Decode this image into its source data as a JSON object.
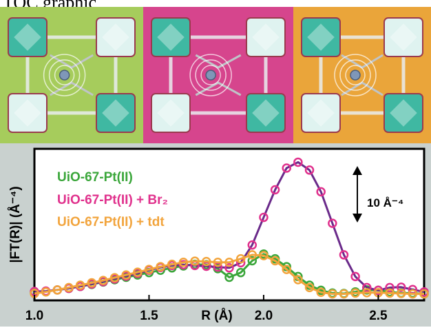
{
  "header": {
    "title": "TOC graphic"
  },
  "panels": [
    {
      "name": "green",
      "bg": "#a6cc5c"
    },
    {
      "name": "magenta",
      "bg": "#d6458d"
    },
    {
      "name": "orange",
      "bg": "#eaa53a"
    }
  ],
  "chart_data": {
    "type": "line",
    "xlabel": "R (Å)",
    "ylabel": "|FT(R)| (Å⁻⁴)",
    "xlim": [
      1.0,
      2.7
    ],
    "xticks": [
      "1.0",
      "1.5",
      "2.0",
      "2.5"
    ],
    "scale_bar": {
      "label": "10 Å⁻⁴",
      "value": 10
    },
    "grid": false,
    "legend_position": "top-left",
    "series": [
      {
        "name": "UiO-67-Pt(II)",
        "color": "#3aa63a",
        "x": [
          1.0,
          1.05,
          1.1,
          1.15,
          1.2,
          1.25,
          1.3,
          1.35,
          1.4,
          1.45,
          1.5,
          1.55,
          1.6,
          1.65,
          1.7,
          1.75,
          1.8,
          1.85,
          1.9,
          1.95,
          2.0,
          2.05,
          2.1,
          2.15,
          2.2,
          2.25,
          2.3,
          2.35,
          2.4,
          2.45,
          2.5,
          2.55,
          2.6,
          2.65,
          2.7
        ],
        "y": [
          0.9,
          1.2,
          1.6,
          2.0,
          2.5,
          3.0,
          3.6,
          4.2,
          4.8,
          5.4,
          6.0,
          6.6,
          7.2,
          7.7,
          8.1,
          8.0,
          7.0,
          4.8,
          6.0,
          9.0,
          10.7,
          9.5,
          7.5,
          5.0,
          2.8,
          1.5,
          0.8,
          0.7,
          1.1,
          1.6,
          1.5,
          1.1,
          0.8,
          0.8,
          0.6
        ]
      },
      {
        "name": "UiO-67-Pt(II) + Br₂",
        "color": "#e0308c",
        "x": [
          1.0,
          1.05,
          1.1,
          1.15,
          1.2,
          1.25,
          1.3,
          1.35,
          1.4,
          1.45,
          1.5,
          1.55,
          1.6,
          1.65,
          1.7,
          1.75,
          1.8,
          1.85,
          1.9,
          1.95,
          2.0,
          2.05,
          2.1,
          2.15,
          2.2,
          2.25,
          2.3,
          2.35,
          2.4,
          2.45,
          2.5,
          2.55,
          2.6,
          2.65,
          2.7
        ],
        "y": [
          1.2,
          1.3,
          1.6,
          2.0,
          2.5,
          3.1,
          3.7,
          4.4,
          5.1,
          5.8,
          6.6,
          7.3,
          7.8,
          8.0,
          7.8,
          7.6,
          7.4,
          7.2,
          8.5,
          13.0,
          20.0,
          27.0,
          32.5,
          34.0,
          32.0,
          26.5,
          18.5,
          10.5,
          5.0,
          2.2,
          1.5,
          2.2,
          2.3,
          1.7,
          1.1
        ]
      },
      {
        "name": "UiO-67-Pt(II) + tdt",
        "color": "#f2a43c",
        "x": [
          1.0,
          1.05,
          1.1,
          1.15,
          1.2,
          1.25,
          1.3,
          1.35,
          1.4,
          1.45,
          1.5,
          1.55,
          1.6,
          1.65,
          1.7,
          1.75,
          1.8,
          1.85,
          1.9,
          1.95,
          2.0,
          2.05,
          2.1,
          2.15,
          2.2,
          2.25,
          2.3,
          2.35,
          2.4,
          2.45,
          2.5,
          2.55,
          2.6,
          2.65,
          2.7
        ],
        "y": [
          0.7,
          1.1,
          1.6,
          2.2,
          2.8,
          3.4,
          4.0,
          4.7,
          5.4,
          6.1,
          6.8,
          7.5,
          8.1,
          8.6,
          8.9,
          8.8,
          8.6,
          8.6,
          9.5,
          10.5,
          10.3,
          9.0,
          6.8,
          4.2,
          2.2,
          1.0,
          0.6,
          0.6,
          0.8,
          0.9,
          0.9,
          0.8,
          0.7,
          0.6,
          0.6
        ]
      }
    ]
  }
}
